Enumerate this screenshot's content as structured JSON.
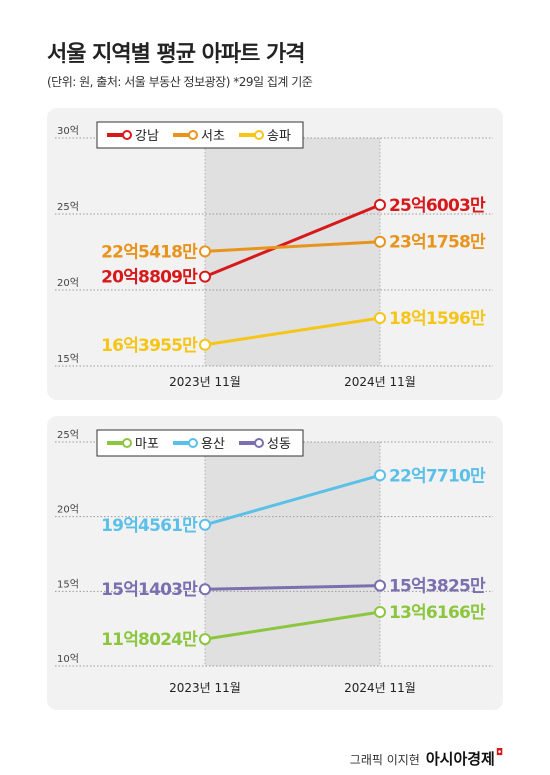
{
  "header": {
    "title": "서울 지역별 평균 아파트 가격",
    "subtitle": "(단위: 원, 출처: 서울 부동산 정보광장)  *29일 집계 기준"
  },
  "footer": {
    "credit": "그래픽 이지현",
    "brand": "아시아경제"
  },
  "chart_data": [
    {
      "type": "line",
      "categories": [
        "2023년 11월",
        "2024년 11월"
      ],
      "ylim": [
        15,
        30
      ],
      "yticks": [
        "30억",
        "25억",
        "20억",
        "15억"
      ],
      "grid": true,
      "legend": "top-left",
      "series": [
        {
          "name": "강남",
          "color": "#d7191c",
          "values": [
            20.8809,
            25.6003
          ],
          "labels": [
            "20억8809만",
            "25억6003만"
          ]
        },
        {
          "name": "서초",
          "color": "#e8941c",
          "values": [
            22.5418,
            23.1758
          ],
          "labels": [
            "22억5418만",
            "23억1758만"
          ]
        },
        {
          "name": "송파",
          "color": "#f5c518",
          "values": [
            16.3955,
            18.1596
          ],
          "labels": [
            "16억3955만",
            "18억1596만"
          ]
        }
      ]
    },
    {
      "type": "line",
      "categories": [
        "2023년 11월",
        "2024년 11월"
      ],
      "ylim": [
        10,
        25
      ],
      "yticks": [
        "25억",
        "20억",
        "15억",
        "10억"
      ],
      "grid": true,
      "legend": "top-left",
      "series": [
        {
          "name": "마포",
          "color": "#8cc63f",
          "values": [
            11.8024,
            13.6166
          ],
          "labels": [
            "11억8024만",
            "13억6166만"
          ]
        },
        {
          "name": "용산",
          "color": "#5bc0e8",
          "values": [
            19.4561,
            22.771
          ],
          "labels": [
            "19억4561만",
            "22억7710만"
          ]
        },
        {
          "name": "성동",
          "color": "#7b6fb0",
          "values": [
            15.1403,
            15.3825
          ],
          "labels": [
            "15억1403만",
            "15억3825만"
          ]
        }
      ]
    }
  ]
}
